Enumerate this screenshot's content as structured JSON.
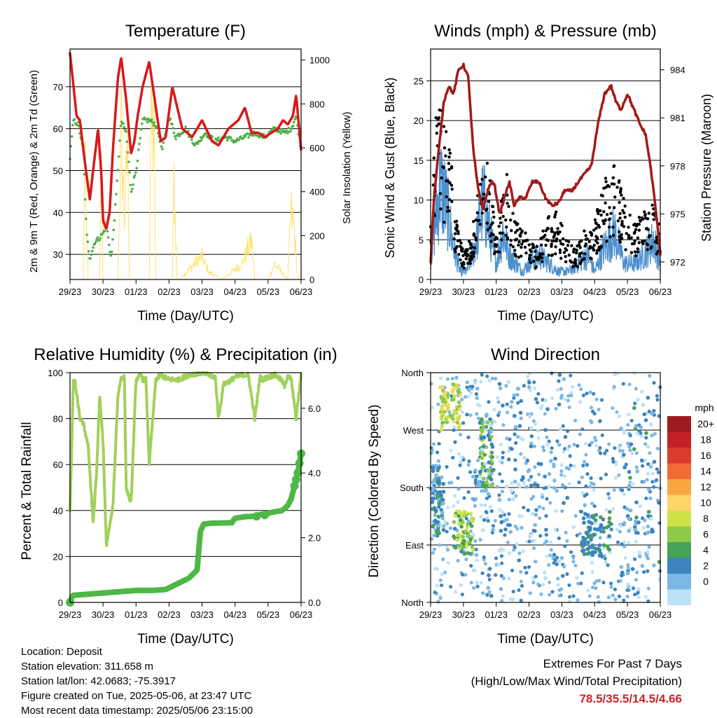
{
  "x_ticks": [
    "29/23",
    "30/23",
    "01/23",
    "02/23",
    "03/23",
    "04/23",
    "05/23",
    "06/23"
  ],
  "x_label": "Time (Day/UTC)",
  "chart_data": [
    {
      "type": "line",
      "title": "Temperature (F)",
      "ylabel": "2m & 9m T (Red, Orange) & 2m Td (Green)",
      "y2label": "Solar Insolation (Yellow)",
      "ylim": [
        24,
        79
      ],
      "y2lim": [
        0,
        1050
      ],
      "yticks": [
        30,
        40,
        50,
        60,
        70
      ],
      "y2ticks": [
        0,
        200,
        400,
        600,
        800,
        1000
      ],
      "colors": {
        "t2m": "#d7191c",
        "t9m": "#fdae61",
        "td": "#4daf4a",
        "solar": "#ffe066"
      },
      "series": [
        {
          "name": "2m T",
          "x": [
            0,
            0.2,
            0.3,
            0.45,
            0.6,
            0.7,
            0.85,
            0.95,
            1.0,
            1.1,
            1.2,
            1.3,
            1.45,
            1.55,
            1.7,
            1.85,
            1.95,
            2.05,
            2.2,
            2.4,
            2.6,
            2.75,
            2.9,
            3.1,
            3.4,
            3.7,
            4.0,
            4.3,
            4.5,
            4.8,
            5.1,
            5.3,
            5.5,
            5.7,
            5.9,
            6.1,
            6.3,
            6.45,
            6.6,
            6.75,
            6.85,
            7.0
          ],
          "y": [
            78,
            63,
            62,
            52,
            43,
            50,
            60,
            49,
            38,
            36,
            40,
            55,
            72,
            77,
            67,
            54,
            57,
            63,
            70,
            76,
            65,
            57,
            58,
            70,
            60,
            58,
            62,
            57,
            56,
            60,
            62,
            65,
            59,
            59,
            58,
            59,
            60,
            62,
            61,
            63,
            68,
            55
          ]
        },
        {
          "name": "9m T",
          "x": [
            0,
            0.2,
            0.3,
            0.45,
            0.6,
            0.7,
            0.85,
            0.95,
            1.0,
            1.1,
            1.2,
            1.3,
            1.45,
            1.55,
            1.7,
            1.85,
            1.95,
            2.05,
            2.2,
            2.4,
            2.6,
            2.75,
            2.9,
            3.1,
            3.4,
            3.7,
            4.0,
            4.3,
            4.5,
            4.8,
            5.1,
            5.3,
            5.5,
            5.7,
            5.9,
            6.1,
            6.3,
            6.45,
            6.6,
            6.75,
            6.85,
            7.0
          ],
          "y": [
            77.5,
            62.5,
            61.5,
            51.5,
            43,
            50,
            59.5,
            48.5,
            38,
            36,
            40,
            54.5,
            71.5,
            76.5,
            66.5,
            53.5,
            56.5,
            62.5,
            69.5,
            75.5,
            64.5,
            56.5,
            57.5,
            69.5,
            59.5,
            57.5,
            61.5,
            56.5,
            55.5,
            59.5,
            61.5,
            64.5,
            58.5,
            58.5,
            57.5,
            58.5,
            59.5,
            61.5,
            60.5,
            62.5,
            67.5,
            54.5
          ]
        },
        {
          "name": "2m Td",
          "x": [
            0,
            0.1,
            0.25,
            0.4,
            0.5,
            0.6,
            0.75,
            0.9,
            1.0,
            1.1,
            1.25,
            1.4,
            1.55,
            1.7,
            1.85,
            2.0,
            2.2,
            2.4,
            2.6,
            2.8,
            3.0,
            3.2,
            3.5,
            3.8,
            4.1,
            4.4,
            4.7,
            5.0,
            5.3,
            5.6,
            5.9,
            6.2,
            6.5,
            6.7,
            6.85,
            7.0
          ],
          "y": [
            53,
            62,
            61,
            55,
            35,
            29,
            33,
            34,
            35,
            37,
            29,
            44,
            62,
            59,
            45,
            50,
            62,
            62,
            61,
            55,
            63,
            58,
            60,
            56,
            59,
            57,
            58,
            57,
            58,
            59,
            58,
            60,
            59,
            60,
            63,
            55
          ]
        },
        {
          "name": "Solar",
          "axis": "y2",
          "x": [
            0,
            0.4,
            0.45,
            0.5,
            0.55,
            0.9,
            0.95,
            1.0,
            1.45,
            1.55,
            1.65,
            1.75,
            1.8,
            2.4,
            2.45,
            2.55,
            2.6,
            3.1,
            3.15,
            3.2,
            3.25,
            3.3,
            4.0,
            4.2,
            4.6,
            5.2,
            5.5,
            5.6,
            6.0,
            6.2,
            6.6,
            6.7,
            6.8,
            6.9,
            7.0
          ],
          "y": [
            0,
            0,
            800,
            300,
            0,
            0,
            700,
            0,
            0,
            950,
            400,
            900,
            0,
            0,
            1000,
            900,
            0,
            0,
            650,
            300,
            0,
            0,
            150,
            50,
            0,
            100,
            250,
            0,
            0,
            100,
            0,
            450,
            300,
            0,
            0
          ]
        }
      ]
    },
    {
      "type": "line",
      "title": "Winds (mph) & Pressure (mb)",
      "ylabel": "Sonic Wind & Gust (Blue, Black)",
      "y2label": "Station Pressure (Maroon)",
      "ylim": [
        0,
        29
      ],
      "y2lim": [
        970.9,
        985.3
      ],
      "yticks": [
        0,
        5,
        10,
        15,
        20,
        25
      ],
      "y2ticks": [
        972,
        975,
        978,
        981,
        984
      ],
      "colors": {
        "wind": "#4d8fcc",
        "gust": "#000000",
        "pressure": "#a11a1a"
      },
      "series": [
        {
          "name": "Wind",
          "x": [
            0,
            0.3,
            0.5,
            0.7,
            0.9,
            1.1,
            1.4,
            1.6,
            1.8,
            2.0,
            2.2,
            2.4,
            2.6,
            2.8,
            3.0,
            3.3,
            3.6,
            3.9,
            4.2,
            4.5,
            4.8,
            5.0,
            5.3,
            5.6,
            5.9,
            6.2,
            6.5,
            6.8,
            7.0
          ],
          "y": [
            3,
            12,
            9,
            4,
            1,
            1,
            5,
            10,
            6,
            2,
            6,
            3,
            2,
            1,
            2,
            3,
            2,
            1,
            1,
            2,
            3,
            1,
            4,
            6,
            2,
            2,
            3,
            5,
            2
          ]
        },
        {
          "name": "Gust",
          "x": [
            0,
            0.2,
            0.4,
            0.6,
            0.8,
            1.0,
            1.2,
            1.5,
            1.7,
            2.0,
            2.3,
            2.6,
            2.9,
            3.2,
            3.5,
            3.8,
            4.1,
            4.4,
            4.7,
            5.0,
            5.3,
            5.6,
            5.9,
            6.2,
            6.5,
            6.8,
            7.0
          ],
          "y": [
            8,
            20,
            16,
            14,
            6,
            3,
            4,
            10,
            14,
            4,
            12,
            6,
            5,
            3,
            6,
            7,
            5,
            3,
            5,
            6,
            10,
            12,
            8,
            6,
            7,
            8,
            6
          ]
        },
        {
          "name": "Pressure",
          "axis": "y2",
          "x": [
            0,
            0.1,
            0.25,
            0.4,
            0.55,
            0.7,
            0.85,
            1.0,
            1.15,
            1.3,
            1.45,
            1.6,
            1.75,
            1.85,
            1.95,
            2.1,
            2.25,
            2.4,
            2.55,
            2.7,
            2.9,
            3.1,
            3.3,
            3.5,
            3.7,
            3.9,
            4.1,
            4.3,
            4.5,
            4.7,
            4.9,
            5.1,
            5.3,
            5.5,
            5.65,
            5.8,
            6.0,
            6.2,
            6.4,
            6.55,
            6.7,
            6.85,
            7.0
          ],
          "y": [
            971.9,
            976,
            979,
            982,
            983,
            982.5,
            984,
            984.3,
            983.5,
            979,
            976.5,
            975.3,
            976.5,
            977,
            976.8,
            975,
            976,
            977,
            975.5,
            976,
            976,
            977,
            977,
            976,
            975.5,
            975.7,
            976.5,
            976.4,
            977,
            977.5,
            978,
            980.6,
            982.5,
            983,
            982,
            981.5,
            982.5,
            981.5,
            980.5,
            980,
            978,
            975.5,
            972.5
          ]
        }
      ]
    },
    {
      "type": "line",
      "title": "Relative Humidity (%) & Precipitation (in)",
      "ylabel": "Percent & Total Rainfall",
      "ylim": [
        0,
        100
      ],
      "y2lim": [
        0,
        7.1
      ],
      "yticks": [
        0,
        20,
        40,
        60,
        80,
        100
      ],
      "y2ticks": [
        "0.0",
        "2.0",
        "4.0",
        "6.0"
      ],
      "colors": {
        "rh": "#a2d05c",
        "precip": "#4db846"
      },
      "series": [
        {
          "name": "RH",
          "x": [
            0,
            0.1,
            0.15,
            0.3,
            0.4,
            0.55,
            0.7,
            0.8,
            0.9,
            1.0,
            1.1,
            1.2,
            1.3,
            1.45,
            1.55,
            1.65,
            1.7,
            1.85,
            2.0,
            2.15,
            2.2,
            2.3,
            2.4,
            2.6,
            2.75,
            2.85,
            3.0,
            3.3,
            3.6,
            4.0,
            4.4,
            4.5,
            4.65,
            4.8,
            5.0,
            5.2,
            5.4,
            5.6,
            5.75,
            5.85,
            6.0,
            6.2,
            6.4,
            6.5,
            6.6,
            6.7,
            6.85,
            7.0
          ],
          "y": [
            40,
            96,
            96,
            80,
            78,
            68,
            35,
            55,
            90,
            70,
            25,
            33,
            42,
            90,
            98,
            98,
            50,
            43,
            97,
            99,
            97,
            97,
            60,
            97,
            99,
            98,
            97,
            97,
            99,
            100,
            98,
            80,
            95,
            96,
            98,
            99,
            99,
            80,
            98,
            97,
            98,
            99,
            97,
            94,
            99,
            97,
            80,
            99
          ]
        },
        {
          "name": "Precip",
          "axis": "y2",
          "x": [
            0,
            0.05,
            0.1,
            2.0,
            2.5,
            2.9,
            3.3,
            3.6,
            3.85,
            3.95,
            4.05,
            4.3,
            4.9,
            5.0,
            5.3,
            5.6,
            5.7,
            5.8,
            5.9,
            6.0,
            6.1,
            6.2,
            6.3,
            6.4,
            6.5,
            6.6,
            6.7,
            6.8,
            6.9,
            7.0
          ],
          "y": [
            0,
            0.15,
            0.22,
            0.37,
            0.37,
            0.4,
            0.6,
            0.75,
            1.0,
            2.2,
            2.42,
            2.45,
            2.46,
            2.6,
            2.65,
            2.66,
            2.7,
            2.72,
            2.73,
            2.75,
            2.78,
            2.8,
            2.82,
            2.83,
            2.9,
            3.0,
            3.2,
            3.6,
            4.0,
            4.6
          ]
        }
      ]
    },
    {
      "type": "scatter",
      "title": "Wind Direction",
      "ylabel": "Direction (Colored By Speed)",
      "yticks": [
        "North",
        "West",
        "South",
        "East",
        "North"
      ],
      "colorbar": {
        "unit": "mph",
        "labels": [
          "20+",
          "18",
          "16",
          "14",
          "12",
          "10",
          "8",
          "6",
          "4",
          "2",
          "0"
        ],
        "colors": [
          "#9e1b1e",
          "#c22126",
          "#db3b2f",
          "#f26a33",
          "#f9a642",
          "#fed568",
          "#d0e24a",
          "#8ccb47",
          "#46a256",
          "#3c84bf",
          "#7db8e5",
          "#bde3f6"
        ]
      },
      "clusters": [
        {
          "x": [
            0.3,
            0.9
          ],
          "dir": [
            0.75,
            0.95
          ],
          "speed": [
            7,
            12
          ]
        },
        {
          "x": [
            0.05,
            0.4
          ],
          "dir": [
            0.3,
            0.6
          ],
          "speed": [
            2,
            6
          ]
        },
        {
          "x": [
            0.7,
            1.3
          ],
          "dir": [
            0.2,
            0.4
          ],
          "speed": [
            4,
            11
          ]
        },
        {
          "x": [
            1.5,
            1.9
          ],
          "dir": [
            0.5,
            0.8
          ],
          "speed": [
            4,
            9
          ]
        },
        {
          "x": [
            1.2,
            2.6
          ],
          "dir": [
            0.0,
            1.0
          ],
          "speed": [
            0,
            4
          ]
        },
        {
          "x": [
            2.6,
            4.2
          ],
          "dir": [
            0.1,
            1.0
          ],
          "speed": [
            0,
            5
          ]
        },
        {
          "x": [
            4.6,
            5.5
          ],
          "dir": [
            0.2,
            0.4
          ],
          "speed": [
            3,
            6
          ]
        },
        {
          "x": [
            5.8,
            7.0
          ],
          "dir": [
            0.1,
            0.9
          ],
          "speed": [
            0,
            6
          ]
        }
      ]
    }
  ],
  "info": {
    "location": "Location: Deposit",
    "elevation": "Station elevation: 311.658 m",
    "latlon": "Station lat/lon: 42.0683; -75.3917",
    "created": "Figure created on Tue, 2025-05-06, at 23:47 UTC",
    "recent": "Most recent data timestamp: 2025/05/06 23:15:00"
  },
  "extremes": {
    "title": "Extremes For Past 7 Days",
    "subtitle": "(High/Low/Max Wind/Total Precipitation)",
    "values": "78.5/35.5/14.5/4.66"
  }
}
